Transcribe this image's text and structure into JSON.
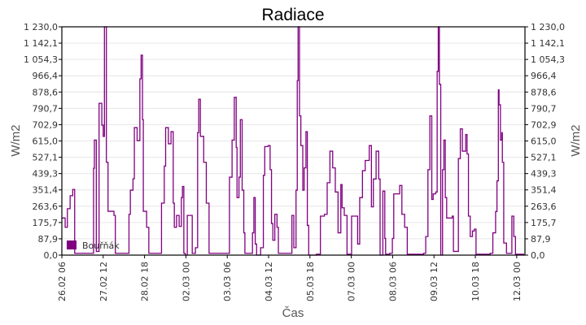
{
  "chart_data": {
    "type": "line",
    "title": "Radiace",
    "xlabel": "Čas",
    "ylabel": "W/m2",
    "ylabel_right": "W/m2",
    "x_unit": "hours since 26.02 06:00",
    "xlim": [
      0,
      336
    ],
    "ylim": [
      0,
      1230
    ],
    "grid": true,
    "legend_placement": "bottom-left",
    "y_ticks": [
      "0,0",
      "87,9",
      "175,7",
      "263,6",
      "351,4",
      "439,3",
      "527,1",
      "615,0",
      "702,9",
      "790,7",
      "878,6",
      "966,4",
      "1 054,3",
      "1 142,1",
      "1 230,0"
    ],
    "x_ticks": [
      {
        "hour": 0,
        "label": "26.02 06"
      },
      {
        "hour": 30,
        "label": "27.02 12"
      },
      {
        "hour": 60,
        "label": "28.02 18"
      },
      {
        "hour": 90,
        "label": "02.03 00"
      },
      {
        "hour": 120,
        "label": "03.03 06"
      },
      {
        "hour": 150,
        "label": "04.03 12"
      },
      {
        "hour": 180,
        "label": "05.03 18"
      },
      {
        "hour": 210,
        "label": "07.03 00"
      },
      {
        "hour": 240,
        "label": "08.03 06"
      },
      {
        "hour": 270,
        "label": "09.03 12"
      },
      {
        "hour": 300,
        "label": "10.03 18"
      },
      {
        "hour": 330,
        "label": "12.03 00"
      }
    ],
    "series": [
      {
        "name": "Bouřňák",
        "color": "#800080",
        "points": [
          [
            0,
            200
          ],
          [
            2.4,
            150
          ],
          [
            4,
            250
          ],
          [
            6,
            320
          ],
          [
            7.9,
            354
          ],
          [
            9.3,
            10
          ],
          [
            22,
            10
          ],
          [
            23,
            468
          ],
          [
            23.6,
            620
          ],
          [
            25,
            20
          ],
          [
            26,
            20
          ],
          [
            27,
            818
          ],
          [
            29,
            700
          ],
          [
            30,
            640
          ],
          [
            30.9,
            1230
          ],
          [
            31.9,
            1230
          ],
          [
            32.3,
            500
          ],
          [
            33.5,
            236
          ],
          [
            37.8,
            214
          ],
          [
            38.8,
            10
          ],
          [
            47.7,
            10
          ],
          [
            48.7,
            220
          ],
          [
            49.7,
            350
          ],
          [
            51.6,
            411
          ],
          [
            52.6,
            687
          ],
          [
            54.6,
            617
          ],
          [
            56.6,
            950
          ],
          [
            57.5,
            1077
          ],
          [
            58.5,
            730
          ],
          [
            59.1,
            236
          ],
          [
            61.5,
            150
          ],
          [
            63.1,
            10
          ],
          [
            71.3,
            10
          ],
          [
            72.3,
            280
          ],
          [
            74.3,
            480
          ],
          [
            75.3,
            687
          ],
          [
            77.3,
            600
          ],
          [
            79.2,
            665
          ],
          [
            80.8,
            280
          ],
          [
            81.6,
            150
          ],
          [
            83.2,
            214
          ],
          [
            85.1,
            155
          ],
          [
            86.7,
            310
          ],
          [
            87.5,
            370
          ],
          [
            88.5,
            10
          ],
          [
            89.5,
            0
          ],
          [
            91,
            214
          ],
          [
            94,
            214
          ],
          [
            94.6,
            10
          ],
          [
            96.9,
            40
          ],
          [
            98.5,
            660
          ],
          [
            99.3,
            840
          ],
          [
            100.5,
            640
          ],
          [
            102.9,
            500
          ],
          [
            104.8,
            280
          ],
          [
            106.8,
            10
          ],
          [
            120.6,
            10
          ],
          [
            121.6,
            420
          ],
          [
            123.5,
            620
          ],
          [
            125.1,
            850
          ],
          [
            126.5,
            580
          ],
          [
            127.1,
            310
          ],
          [
            128.5,
            420
          ],
          [
            129.5,
            730
          ],
          [
            130.8,
            350
          ],
          [
            132,
            120
          ],
          [
            132.8,
            10
          ],
          [
            137.3,
            10
          ],
          [
            138.3,
            120
          ],
          [
            139.3,
            310
          ],
          [
            140.3,
            60
          ],
          [
            141.3,
            0
          ],
          [
            144.2,
            40
          ],
          [
            146.2,
            430
          ],
          [
            147.2,
            585
          ],
          [
            149.7,
            590
          ],
          [
            151.1,
            460
          ],
          [
            152.1,
            170
          ],
          [
            153.1,
            80
          ],
          [
            154.5,
            220
          ],
          [
            156.1,
            150
          ],
          [
            157.1,
            10
          ],
          [
            165.9,
            10
          ],
          [
            166.9,
            214
          ],
          [
            168.3,
            40
          ],
          [
            169.9,
            350
          ],
          [
            170.8,
            940
          ],
          [
            171.4,
            1230
          ],
          [
            172.4,
            750
          ],
          [
            173.4,
            590
          ],
          [
            174.8,
            350
          ],
          [
            175.8,
            470
          ],
          [
            177.1,
            665
          ],
          [
            178.1,
            160
          ],
          [
            179.1,
            0
          ],
          [
            184.6,
            5
          ],
          [
            187.6,
            210
          ],
          [
            190.5,
            220
          ],
          [
            192.5,
            390
          ],
          [
            194.5,
            560
          ],
          [
            196.5,
            470
          ],
          [
            198.4,
            340
          ],
          [
            200.4,
            120
          ],
          [
            202.4,
            380
          ],
          [
            203.3,
            255
          ],
          [
            204.9,
            214
          ],
          [
            206.9,
            5
          ],
          [
            209.3,
            5
          ],
          [
            210.2,
            210
          ],
          [
            213.2,
            210
          ],
          [
            214.6,
            60
          ],
          [
            216.1,
            310
          ],
          [
            218.1,
            455
          ],
          [
            220.1,
            510
          ],
          [
            223,
            590
          ],
          [
            224.6,
            260
          ],
          [
            226,
            410
          ],
          [
            228,
            560
          ],
          [
            229.9,
            410
          ],
          [
            230.9,
            0
          ],
          [
            232.9,
            345
          ],
          [
            234.3,
            90
          ],
          [
            234.9,
            5
          ],
          [
            237.8,
            10
          ],
          [
            239.8,
            90
          ],
          [
            240.8,
            330
          ],
          [
            243.7,
            330
          ],
          [
            245.1,
            375
          ],
          [
            246.7,
            220
          ],
          [
            248.7,
            150
          ],
          [
            250.6,
            5
          ],
          [
            258.5,
            5
          ],
          [
            262.5,
            10
          ],
          [
            264,
            100
          ],
          [
            265.6,
            460
          ],
          [
            267,
            750
          ],
          [
            268.4,
            300
          ],
          [
            269.4,
            330
          ],
          [
            271.3,
            340
          ],
          [
            272.3,
            990
          ],
          [
            273.1,
            1230
          ],
          [
            273.9,
            920
          ],
          [
            274.9,
            0
          ],
          [
            276.2,
            460
          ],
          [
            277.2,
            620
          ],
          [
            278.2,
            310
          ],
          [
            279.2,
            200
          ],
          [
            283.2,
            210
          ],
          [
            284.1,
            20
          ],
          [
            286.1,
            20
          ],
          [
            287.7,
            520
          ],
          [
            289.1,
            680
          ],
          [
            290.6,
            560
          ],
          [
            293,
            650
          ],
          [
            294,
            545
          ],
          [
            295,
            210
          ],
          [
            296.3,
            100
          ],
          [
            297.9,
            130
          ],
          [
            299.3,
            140
          ],
          [
            300.5,
            5
          ],
          [
            310.7,
            10
          ],
          [
            312.7,
            120
          ],
          [
            314.7,
            235
          ],
          [
            315.7,
            400
          ],
          [
            316.7,
            890
          ],
          [
            317.2,
            810
          ],
          [
            318.2,
            620
          ],
          [
            319.2,
            660
          ],
          [
            319.6,
            500
          ],
          [
            320.6,
            65
          ],
          [
            322.6,
            10
          ],
          [
            325.5,
            10
          ],
          [
            326.5,
            210
          ],
          [
            327.9,
            100
          ],
          [
            329.1,
            5
          ],
          [
            335.4,
            5
          ]
        ]
      }
    ]
  }
}
